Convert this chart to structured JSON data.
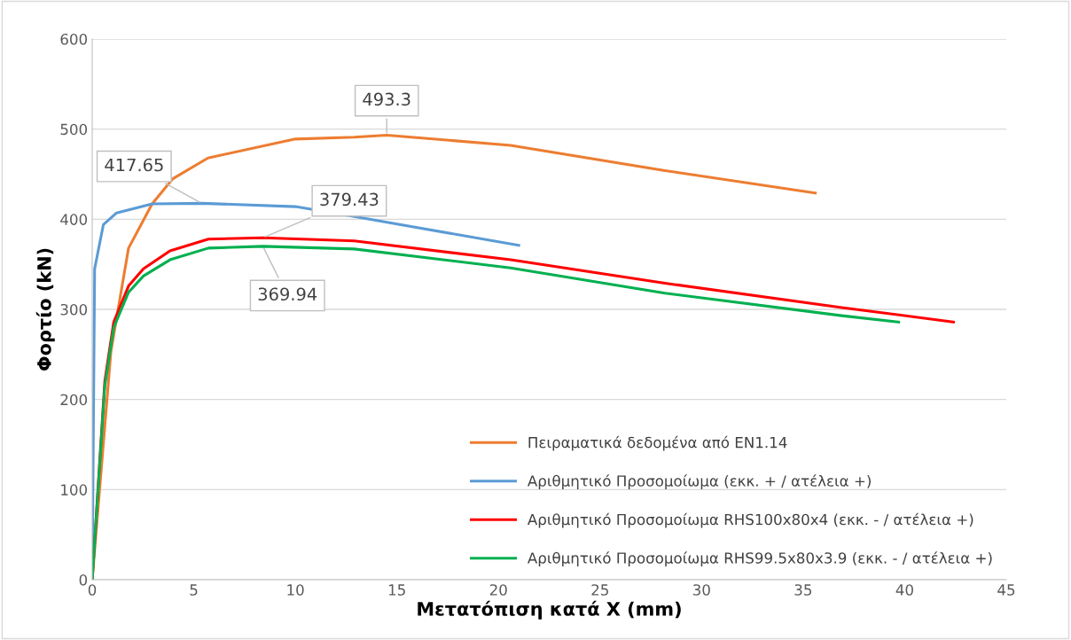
{
  "chart_data": {
    "type": "line",
    "xlabel": "Μετατόπιση κατά X (mm)",
    "ylabel": "Φορτίο (kN)",
    "xlim": [
      0,
      45
    ],
    "xticks": [
      0,
      5,
      10,
      15,
      20,
      25,
      30,
      35,
      40,
      45
    ],
    "ylim": [
      0,
      600
    ],
    "yticks": [
      0,
      100,
      200,
      300,
      400,
      500,
      600
    ],
    "grid": "y",
    "legend": "bottom right",
    "marker": "none",
    "line_style": "solid",
    "series": [
      {
        "name": "Πειραματικά δεδομένα από EN1.14",
        "color": "#ed7d31",
        "x": [
          0,
          0.92,
          1.79,
          2.95,
          3.97,
          5.7,
          10,
          12.9,
          14.5,
          20.6,
          28.2,
          35.6
        ],
        "values": [
          0,
          253,
          368,
          417,
          445,
          468,
          489,
          491,
          493.3,
          482,
          454,
          429
        ]
      },
      {
        "name": "Αριθμητικό Προσομοίωμα (εκκ. + / ατέλεια +)",
        "color": "#5b9bd5",
        "x": [
          0,
          0.12,
          0.55,
          1.2,
          2.95,
          5.4,
          10,
          12.9,
          21.0
        ],
        "values": [
          0,
          345,
          394,
          407,
          417,
          417.65,
          414,
          403,
          371
        ]
      },
      {
        "name": "Αριθμητικό Προσομοίωμα RHS100x80x4 (εκκ. - / ατέλεια +)",
        "color": "#ff0000",
        "x": [
          0,
          0.62,
          1.06,
          1.79,
          2.52,
          3.83,
          5.72,
          8.41,
          12.9,
          20.6,
          28.2,
          36.9,
          42.4
        ],
        "values": [
          0,
          220,
          286,
          326,
          345,
          365,
          378,
          379.43,
          376,
          355,
          329,
          302,
          286
        ]
      },
      {
        "name": "Αριθμητικό Προσομοίωμα RHS99.5x80x3.9 (εκκ. - / ατέλεια +)",
        "color": "#00b050",
        "x": [
          0,
          0.62,
          1.06,
          1.79,
          2.52,
          3.83,
          5.72,
          8.4,
          12.9,
          20.6,
          28.2,
          36.9,
          39.7
        ],
        "values": [
          0,
          215,
          280,
          319,
          337,
          355,
          368,
          369.94,
          367,
          346,
          318,
          293,
          286
        ]
      }
    ],
    "annotations": [
      {
        "text": "493.3",
        "x": 14.5,
        "y": 493.3
      },
      {
        "text": "417.65",
        "x": 5.4,
        "y": 417.65
      },
      {
        "text": "379.43",
        "x": 8.41,
        "y": 379.43
      },
      {
        "text": "369.94",
        "x": 8.4,
        "y": 369.94
      }
    ]
  }
}
